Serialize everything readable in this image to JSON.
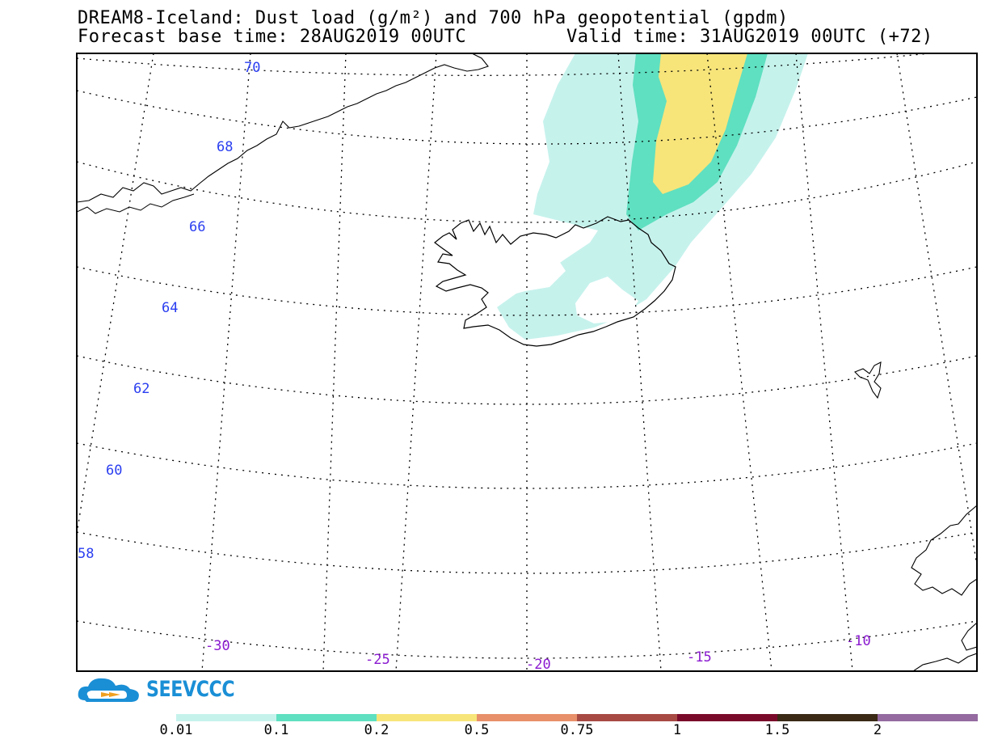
{
  "title": {
    "line1": "DREAM8-Iceland: Dust load (g/m²) and 700 hPa geopotential (gpdm)",
    "forecast_base": "Forecast base time: 28AUG2019 00UTC",
    "valid_time": "Valid time: 31AUG2019 00UTC (+72)"
  },
  "map": {
    "lat_labels": [
      "70",
      "68",
      "66",
      "64",
      "62",
      "60",
      "58"
    ],
    "lon_labels": [
      "-30",
      "-25",
      "-20",
      "-15",
      "-10"
    ],
    "lat_label_color": "#2a3ef0",
    "lon_label_color": "#8a1ad0"
  },
  "logo": {
    "text": "SEEVCCC",
    "icon": "cloud-logo-icon",
    "color": "#1a8fd6"
  },
  "colorbar": {
    "segments": [
      {
        "color": "#c6f2ec"
      },
      {
        "color": "#5fe0c0"
      },
      {
        "color": "#f7e57a"
      },
      {
        "color": "#e8906a"
      },
      {
        "color": "#a84a44"
      },
      {
        "color": "#7a0a2a"
      },
      {
        "color": "#3a2a16"
      },
      {
        "color": "#946aa0"
      }
    ],
    "labels": [
      "0.01",
      "0.1",
      "0.2",
      "0.5",
      "0.75",
      "1",
      "1.5",
      "2"
    ]
  }
}
